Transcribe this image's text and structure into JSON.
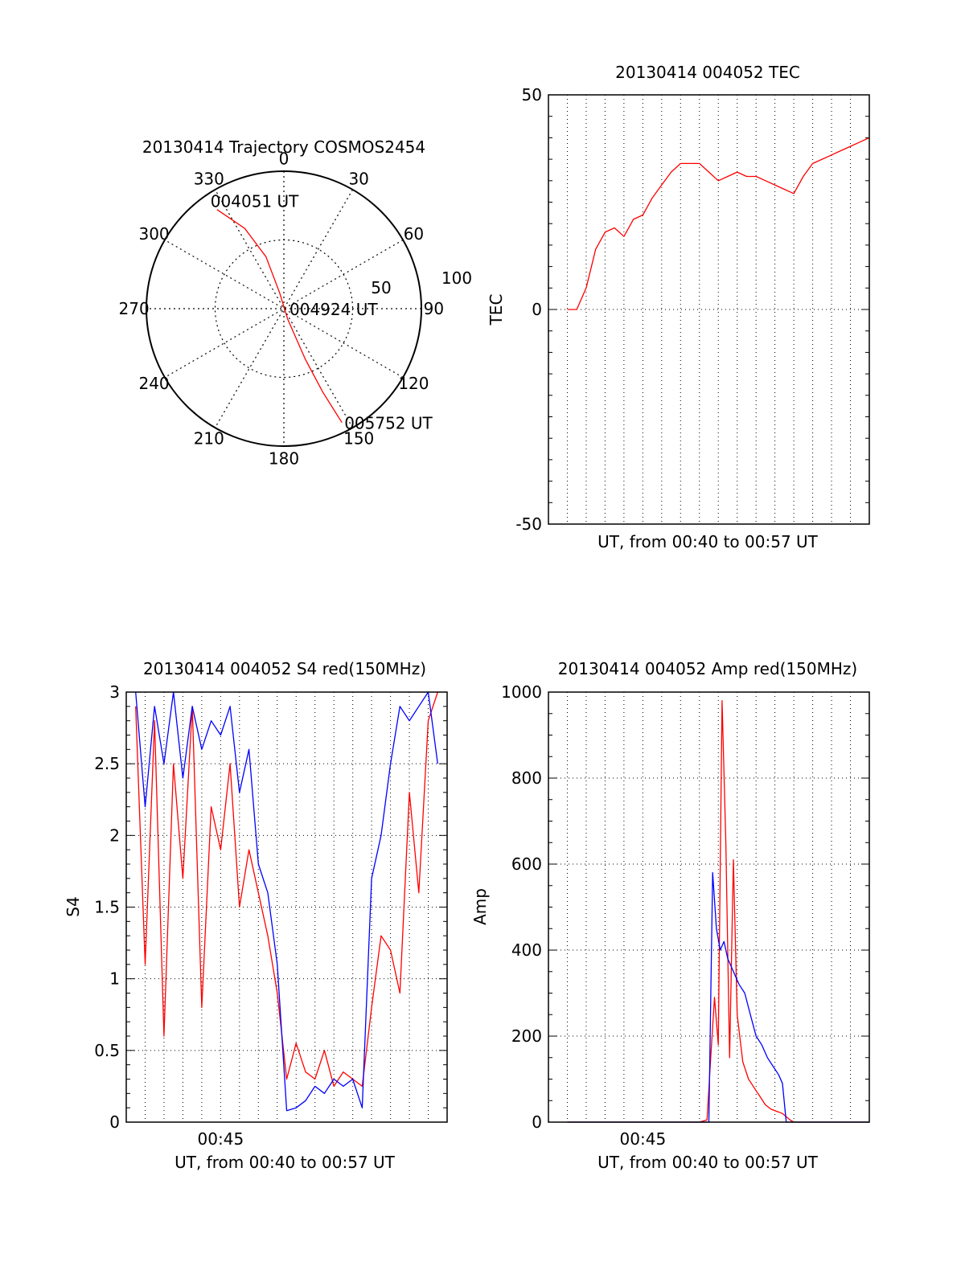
{
  "chart_data": [
    {
      "type": "polar",
      "title": "20130414 Trajectory COSMOS2454",
      "azimuth_labels": [
        "0",
        "30",
        "60",
        "90",
        "120",
        "150",
        "180",
        "210",
        "240",
        "270",
        "300",
        "330"
      ],
      "radius_labels": [
        "50",
        "100"
      ],
      "rlim": [
        0,
        100
      ],
      "grid": true,
      "series": [
        {
          "color": "#ff0000",
          "points": [
            {
              "azimuth": 326,
              "elev_radius": 87
            },
            {
              "azimuth": 334,
              "elev_radius": 65
            },
            {
              "azimuth": 341,
              "elev_radius": 40
            },
            {
              "azimuth": 345,
              "elev_radius": 12
            },
            {
              "azimuth": 160,
              "elev_radius": 8
            },
            {
              "azimuth": 157,
              "elev_radius": 40
            },
            {
              "azimuth": 155,
              "elev_radius": 67
            },
            {
              "azimuth": 153,
              "elev_radius": 93
            }
          ]
        }
      ],
      "annotations": [
        {
          "text": "004051 UT",
          "azimuth": 326,
          "elev_radius": 87
        },
        {
          "text": "004924 UT",
          "azimuth": 0,
          "elev_radius": 0
        },
        {
          "text": "005752 UT",
          "azimuth": 153,
          "elev_radius": 93
        }
      ]
    },
    {
      "type": "line",
      "title": "20130414 004052 TEC",
      "xlabel": "UT, from 00:40 to 00:57 UT",
      "ylabel": "TEC",
      "xlim": [
        40.0,
        57.0
      ],
      "ylim": [
        -50,
        50
      ],
      "yticks": [
        -50,
        0,
        50
      ],
      "grid": true,
      "series": [
        {
          "color": "#ff0000",
          "x": [
            41.0,
            41.5,
            42.0,
            42.5,
            43.0,
            43.5,
            44.0,
            44.5,
            45.0,
            45.5,
            46.0,
            46.5,
            47.0,
            47.5,
            48.0,
            48.5,
            49.0,
            49.5,
            50.0,
            50.5,
            51.0,
            51.5,
            52.0,
            52.5,
            53.0,
            53.5,
            54.0,
            54.5,
            55.0,
            55.5,
            56.0,
            56.5,
            57.0
          ],
          "values": [
            0,
            0,
            5,
            14,
            18,
            19,
            17,
            21,
            22,
            26,
            29,
            32,
            34,
            34,
            34,
            32,
            30,
            31,
            32,
            31,
            31,
            30,
            29,
            28,
            27,
            31,
            34,
            35,
            36,
            37,
            38,
            39,
            40
          ]
        }
      ]
    },
    {
      "type": "line",
      "title": "20130414 004052 S4 red(150MHz)",
      "xlabel": "UT, from 00:40 to 00:57 UT",
      "ylabel": "S4",
      "xticks": [
        {
          "value": 45,
          "label": "00:45"
        }
      ],
      "xlim": [
        40.0,
        57.0
      ],
      "ylim": [
        0,
        3
      ],
      "yticks": [
        0,
        0.5,
        1,
        1.5,
        2,
        2.5,
        3
      ],
      "grid": true,
      "series": [
        {
          "color": "#ff0000",
          "x": [
            40.5,
            41.0,
            41.5,
            42.0,
            42.5,
            43.0,
            43.5,
            44.0,
            44.5,
            45.0,
            45.5,
            46.0,
            46.5,
            47.0,
            47.5,
            48.0,
            48.5,
            49.0,
            49.5,
            50.0,
            50.5,
            51.0,
            51.5,
            52.0,
            52.5,
            53.0,
            53.5,
            54.0,
            54.5,
            55.0,
            55.5,
            56.0,
            56.5
          ],
          "values": [
            2.9,
            1.1,
            2.8,
            0.6,
            2.5,
            1.7,
            2.9,
            0.8,
            2.2,
            1.9,
            2.5,
            1.5,
            1.9,
            1.6,
            1.3,
            0.9,
            0.3,
            0.55,
            0.35,
            0.3,
            0.5,
            0.25,
            0.35,
            0.3,
            0.25,
            0.8,
            1.3,
            1.2,
            0.9,
            2.3,
            1.6,
            2.8,
            3.0
          ]
        },
        {
          "color": "#0000ff",
          "x": [
            40.5,
            41.0,
            41.5,
            42.0,
            42.5,
            43.0,
            43.5,
            44.0,
            44.5,
            45.0,
            45.5,
            46.0,
            46.5,
            47.0,
            47.5,
            48.0,
            48.5,
            49.0,
            49.5,
            50.0,
            50.5,
            51.0,
            51.5,
            52.0,
            52.5,
            53.0,
            53.5,
            54.0,
            54.5,
            55.0,
            55.5,
            56.0,
            56.5
          ],
          "values": [
            3.0,
            2.2,
            2.9,
            2.5,
            3.0,
            2.4,
            2.9,
            2.6,
            2.8,
            2.7,
            2.9,
            2.3,
            2.6,
            1.8,
            1.6,
            1.1,
            0.08,
            0.1,
            0.15,
            0.25,
            0.2,
            0.3,
            0.25,
            0.3,
            0.1,
            1.7,
            2.0,
            2.5,
            2.9,
            2.8,
            2.9,
            3.0,
            2.5
          ]
        }
      ]
    },
    {
      "type": "line",
      "title": "20130414 004052 Amp red(150MHz)",
      "xlabel": "UT, from 00:40 to 00:57 UT",
      "ylabel": "Amp",
      "xticks": [
        {
          "value": 45,
          "label": "00:45"
        }
      ],
      "xlim": [
        40.0,
        57.0
      ],
      "ylim": [
        0,
        1000
      ],
      "yticks": [
        0,
        200,
        400,
        600,
        800,
        1000
      ],
      "grid": true,
      "series": [
        {
          "color": "#ff0000",
          "x": [
            41.0,
            46.0,
            48.0,
            48.4,
            48.6,
            48.8,
            49.0,
            49.2,
            49.4,
            49.6,
            49.8,
            50.0,
            50.3,
            50.6,
            50.9,
            51.2,
            51.5,
            51.8,
            52.1,
            52.4,
            52.8,
            53.0,
            57.0
          ],
          "values": [
            0,
            0,
            0,
            5,
            150,
            290,
            180,
            980,
            650,
            150,
            610,
            250,
            140,
            100,
            80,
            60,
            40,
            30,
            25,
            20,
            5,
            0,
            0
          ]
        },
        {
          "color": "#0000ff",
          "x": [
            41.0,
            46.0,
            48.0,
            48.5,
            48.7,
            48.9,
            49.1,
            49.3,
            49.5,
            49.7,
            49.9,
            50.1,
            50.4,
            50.7,
            51.0,
            51.3,
            51.6,
            51.9,
            52.2,
            52.4,
            52.6,
            57.0
          ],
          "values": [
            0,
            0,
            0,
            0,
            580,
            450,
            400,
            420,
            380,
            360,
            340,
            320,
            300,
            250,
            200,
            180,
            150,
            130,
            110,
            90,
            0,
            0
          ]
        }
      ]
    }
  ]
}
